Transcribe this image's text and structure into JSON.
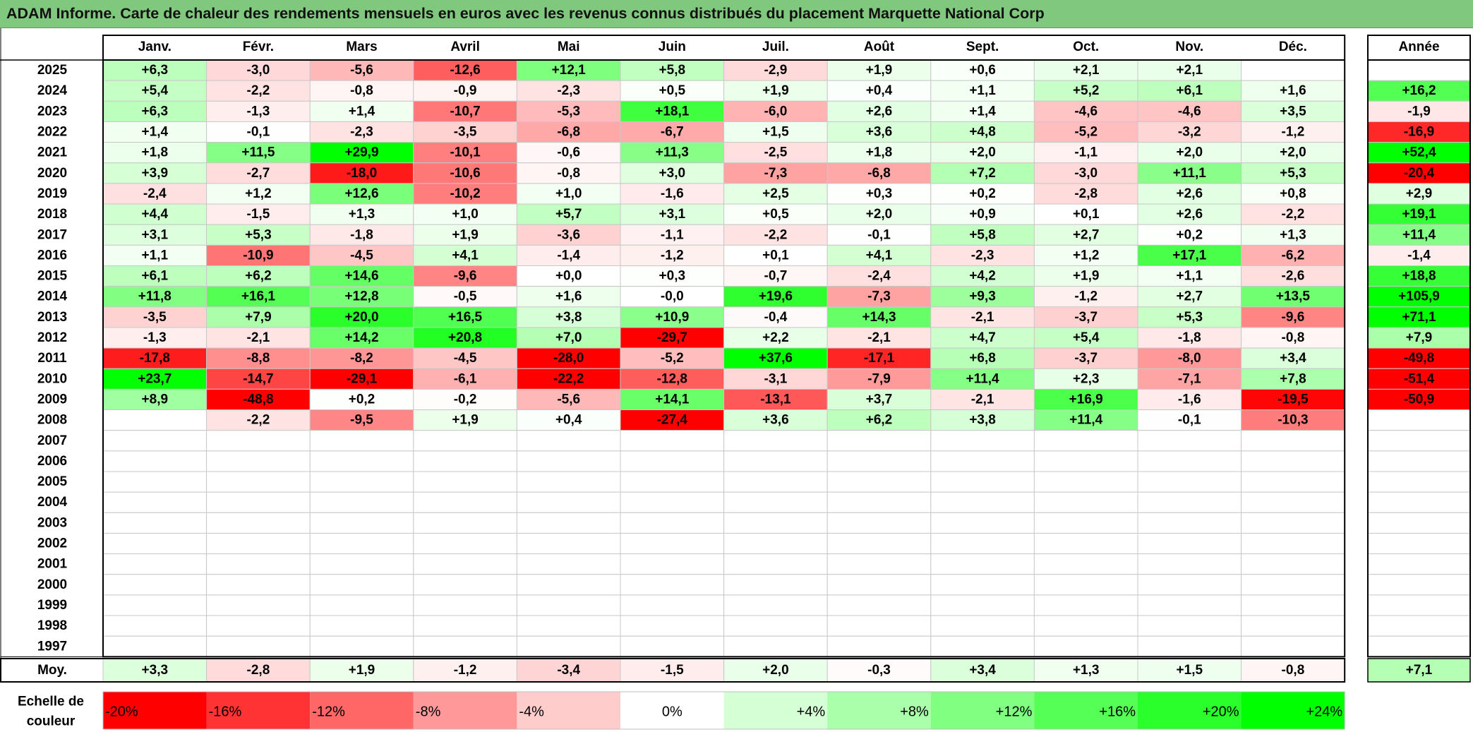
{
  "title": "ADAM Informe. Carte de chaleur des rendements mensuels en euros avec les revenus connus distribués du placement Marquette National Corp",
  "colors": {
    "title_bar": "#80c87e",
    "negative_max": "#ff0000",
    "positive_max": "#00ff00",
    "neutral": "#ffffff",
    "grid": "#bfbfbf",
    "border": "#000000"
  },
  "chart_data": {
    "type": "heatmap",
    "title": "ADAM Informe. Carte de chaleur des rendements mensuels en euros avec les revenus connus distribués du placement Marquette National Corp",
    "columns": [
      "Janv.",
      "Févr.",
      "Mars",
      "Avril",
      "Mai",
      "Juin",
      "Juil.",
      "Août",
      "Sept.",
      "Oct.",
      "Nov.",
      "Déc."
    ],
    "year_header": "Année",
    "rows": [
      {
        "year": "2025",
        "values": [
          "+6,3",
          "-3,0",
          "-5,6",
          "-12,6",
          "+12,1",
          "+5,8",
          "-2,9",
          "+1,9",
          "+0,6",
          "+2,1",
          "+2,1",
          ""
        ],
        "annual": ""
      },
      {
        "year": "2024",
        "values": [
          "+5,4",
          "-2,2",
          "-0,8",
          "-0,9",
          "-2,3",
          "+0,5",
          "+1,9",
          "+0,4",
          "+1,1",
          "+5,2",
          "+6,1",
          "+1,6"
        ],
        "annual": "+16,2"
      },
      {
        "year": "2023",
        "values": [
          "+6,3",
          "-1,3",
          "+1,4",
          "-10,7",
          "-5,3",
          "+18,1",
          "-6,0",
          "+2,6",
          "+1,4",
          "-4,6",
          "-4,6",
          "+3,5"
        ],
        "annual": "-1,9"
      },
      {
        "year": "2022",
        "values": [
          "+1,4",
          "-0,1",
          "-2,3",
          "-3,5",
          "-6,8",
          "-6,7",
          "+1,5",
          "+3,6",
          "+4,8",
          "-5,2",
          "-3,2",
          "-1,2"
        ],
        "annual": "-16,9"
      },
      {
        "year": "2021",
        "values": [
          "+1,8",
          "+11,5",
          "+29,9",
          "-10,1",
          "-0,6",
          "+11,3",
          "-2,5",
          "+1,8",
          "+2,0",
          "-1,1",
          "+2,0",
          "+2,0"
        ],
        "annual": "+52,4"
      },
      {
        "year": "2020",
        "values": [
          "+3,9",
          "-2,7",
          "-18,0",
          "-10,6",
          "-0,8",
          "+3,0",
          "-7,3",
          "-6,8",
          "+7,2",
          "-3,0",
          "+11,1",
          "+5,3"
        ],
        "annual": "-20,4"
      },
      {
        "year": "2019",
        "values": [
          "-2,4",
          "+1,2",
          "+12,6",
          "-10,2",
          "+1,0",
          "-1,6",
          "+2,5",
          "+0,3",
          "+0,2",
          "-2,8",
          "+2,6",
          "+0,8"
        ],
        "annual": "+2,9"
      },
      {
        "year": "2018",
        "values": [
          "+4,4",
          "-1,5",
          "+1,3",
          "+1,0",
          "+5,7",
          "+3,1",
          "+0,5",
          "+2,0",
          "+0,9",
          "+0,1",
          "+2,6",
          "-2,2"
        ],
        "annual": "+19,1"
      },
      {
        "year": "2017",
        "values": [
          "+3,1",
          "+5,3",
          "-1,8",
          "+1,9",
          "-3,6",
          "-1,1",
          "-2,2",
          "-0,1",
          "+5,8",
          "+2,7",
          "+0,2",
          "+1,3"
        ],
        "annual": "+11,4"
      },
      {
        "year": "2016",
        "values": [
          "+1,1",
          "-10,9",
          "-4,5",
          "+4,1",
          "-1,4",
          "-1,2",
          "+0,1",
          "+4,1",
          "-2,3",
          "+1,2",
          "+17,1",
          "-6,2"
        ],
        "annual": "-1,4"
      },
      {
        "year": "2015",
        "values": [
          "+6,1",
          "+6,2",
          "+14,6",
          "-9,6",
          "+0,0",
          "+0,3",
          "-0,7",
          "-2,4",
          "+4,2",
          "+1,9",
          "+1,1",
          "-2,6"
        ],
        "annual": "+18,8"
      },
      {
        "year": "2014",
        "values": [
          "+11,8",
          "+16,1",
          "+12,8",
          "-0,5",
          "+1,6",
          "-0,0",
          "+19,6",
          "-7,3",
          "+9,3",
          "-1,2",
          "+2,7",
          "+13,5"
        ],
        "annual": "+105,9"
      },
      {
        "year": "2013",
        "values": [
          "-3,5",
          "+7,9",
          "+20,0",
          "+16,5",
          "+3,8",
          "+10,9",
          "-0,4",
          "+14,3",
          "-2,1",
          "-3,7",
          "+5,3",
          "-9,6"
        ],
        "annual": "+71,1"
      },
      {
        "year": "2012",
        "values": [
          "-1,3",
          "-2,1",
          "+14,2",
          "+20,8",
          "+7,0",
          "-29,7",
          "+2,2",
          "-2,1",
          "+4,7",
          "+5,4",
          "-1,8",
          "-0,8"
        ],
        "annual": "+7,9"
      },
      {
        "year": "2011",
        "values": [
          "-17,8",
          "-8,8",
          "-8,2",
          "-4,5",
          "-28,0",
          "-5,2",
          "+37,6",
          "-17,1",
          "+6,8",
          "-3,7",
          "-8,0",
          "+3,4"
        ],
        "annual": "-49,8"
      },
      {
        "year": "2010",
        "values": [
          "+23,7",
          "-14,7",
          "-29,1",
          "-6,1",
          "-22,2",
          "-12,8",
          "-3,1",
          "-7,9",
          "+11,4",
          "+2,3",
          "-7,1",
          "+7,8"
        ],
        "annual": "-51,4"
      },
      {
        "year": "2009",
        "values": [
          "+8,9",
          "-48,8",
          "+0,2",
          "-0,2",
          "-5,6",
          "+14,1",
          "-13,1",
          "+3,7",
          "-2,1",
          "+16,9",
          "-1,6",
          "-19,5"
        ],
        "annual": "-50,9"
      },
      {
        "year": "2008",
        "values": [
          "",
          "-2,2",
          "-9,5",
          "+1,9",
          "+0,4",
          "-27,4",
          "+3,6",
          "+6,2",
          "+3,8",
          "+11,4",
          "-0,1",
          "-10,3"
        ],
        "annual": ""
      },
      {
        "year": "2007",
        "values": [
          "",
          "",
          "",
          "",
          "",
          "",
          "",
          "",
          "",
          "",
          "",
          ""
        ],
        "annual": ""
      },
      {
        "year": "2006",
        "values": [
          "",
          "",
          "",
          "",
          "",
          "",
          "",
          "",
          "",
          "",
          "",
          ""
        ],
        "annual": ""
      },
      {
        "year": "2005",
        "values": [
          "",
          "",
          "",
          "",
          "",
          "",
          "",
          "",
          "",
          "",
          "",
          ""
        ],
        "annual": ""
      },
      {
        "year": "2004",
        "values": [
          "",
          "",
          "",
          "",
          "",
          "",
          "",
          "",
          "",
          "",
          "",
          ""
        ],
        "annual": ""
      },
      {
        "year": "2003",
        "values": [
          "",
          "",
          "",
          "",
          "",
          "",
          "",
          "",
          "",
          "",
          "",
          ""
        ],
        "annual": ""
      },
      {
        "year": "2002",
        "values": [
          "",
          "",
          "",
          "",
          "",
          "",
          "",
          "",
          "",
          "",
          "",
          ""
        ],
        "annual": ""
      },
      {
        "year": "2001",
        "values": [
          "",
          "",
          "",
          "",
          "",
          "",
          "",
          "",
          "",
          "",
          "",
          ""
        ],
        "annual": ""
      },
      {
        "year": "2000",
        "values": [
          "",
          "",
          "",
          "",
          "",
          "",
          "",
          "",
          "",
          "",
          "",
          ""
        ],
        "annual": ""
      },
      {
        "year": "1999",
        "values": [
          "",
          "",
          "",
          "",
          "",
          "",
          "",
          "",
          "",
          "",
          "",
          ""
        ],
        "annual": ""
      },
      {
        "year": "1998",
        "values": [
          "",
          "",
          "",
          "",
          "",
          "",
          "",
          "",
          "",
          "",
          "",
          ""
        ],
        "annual": ""
      },
      {
        "year": "1997",
        "values": [
          "",
          "",
          "",
          "",
          "",
          "",
          "",
          "",
          "",
          "",
          "",
          ""
        ],
        "annual": ""
      }
    ],
    "average": {
      "label": "Moy.",
      "values": [
        "+3,3",
        "-2,8",
        "+1,9",
        "-1,2",
        "-3,4",
        "-1,5",
        "+2,0",
        "-0,3",
        "+3,4",
        "+1,3",
        "+1,5",
        "-0,8"
      ],
      "annual": "+7,1"
    },
    "scale": {
      "label_line1": "Echelle de",
      "label_line2": "couleur",
      "steps": [
        {
          "label": "-20%",
          "value": -20
        },
        {
          "label": "-16%",
          "value": -16
        },
        {
          "label": "-12%",
          "value": -12
        },
        {
          "label": "-8%",
          "value": -8
        },
        {
          "label": "-4%",
          "value": -4
        },
        {
          "label": "0%",
          "value": 0
        },
        {
          "label": "+4%",
          "value": 4
        },
        {
          "label": "+8%",
          "value": 8
        },
        {
          "label": "+12%",
          "value": 12
        },
        {
          "label": "+16%",
          "value": 16
        },
        {
          "label": "+20%",
          "value": 20
        },
        {
          "label": "+24%",
          "value": 24
        }
      ]
    },
    "color_range": {
      "negative_min": -20,
      "positive_max": 24
    }
  }
}
